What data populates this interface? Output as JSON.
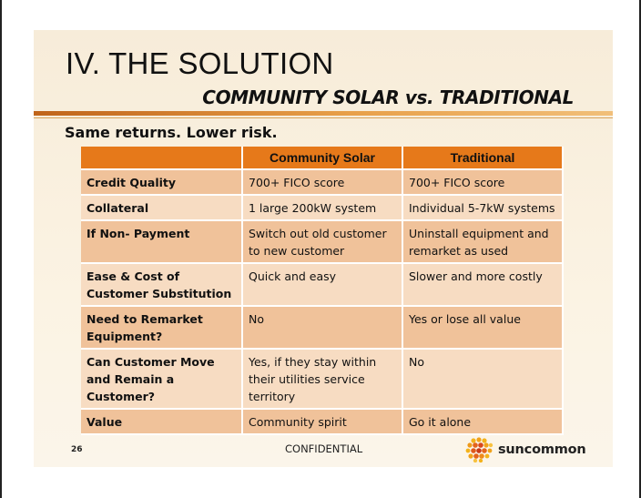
{
  "slide": {
    "title": "IV. THE SOLUTION",
    "subtitle": "COMMUNITY SOLAR vs. TRADITIONAL",
    "tagline": "Same returns. Lower risk."
  },
  "table": {
    "headers": [
      "",
      "Community Solar",
      "Traditional"
    ],
    "rows": [
      {
        "label": "Credit Quality",
        "community": "700+ FICO score",
        "traditional": "700+ FICO score"
      },
      {
        "label": "Collateral",
        "community": "1 large 200kW system",
        "traditional": "Individual 5-7kW systems"
      },
      {
        "label": "If Non- Payment",
        "community": "Switch out old customer to new customer",
        "traditional": "Uninstall equipment and remarket as used"
      },
      {
        "label": "Ease & Cost of Customer Substitution",
        "community": "Quick and easy",
        "traditional": "Slower and more costly"
      },
      {
        "label": "Need to Remarket Equipment?",
        "community": "No",
        "traditional": "Yes or lose all value"
      },
      {
        "label": "Can Customer Move and Remain a Customer?",
        "community": "Yes, if they stay within their utilities service territory",
        "traditional": "No"
      },
      {
        "label": "Value",
        "community": "Community spirit",
        "traditional": "Go it alone"
      }
    ]
  },
  "footer": {
    "page_number": "26",
    "confidential": "CONFIDENTIAL",
    "logo_text": "suncommon",
    "logo_icon": "sun-dots-icon"
  },
  "colors": {
    "header_orange": "#e6791a",
    "row_dark": "#f0c29a",
    "row_light": "#f7dcc2",
    "slide_bg": "#f7ecd9"
  }
}
